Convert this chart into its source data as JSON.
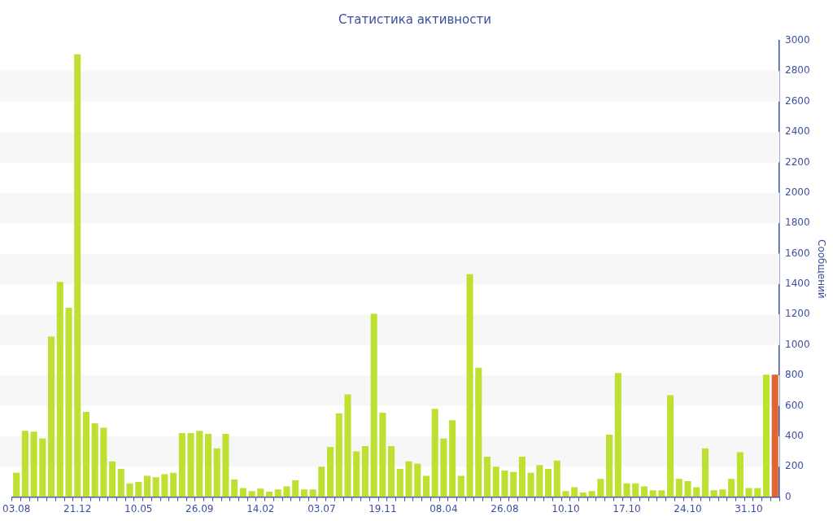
{
  "chart_data": {
    "type": "bar",
    "title": "Статистика активности",
    "y2label": "Сообщений",
    "categories": [
      "03.08",
      null,
      null,
      null,
      null,
      null,
      null,
      "21.12",
      null,
      null,
      null,
      null,
      null,
      null,
      "10.05",
      null,
      null,
      null,
      null,
      null,
      null,
      "26.09",
      null,
      null,
      null,
      null,
      null,
      null,
      "14.02",
      null,
      null,
      null,
      null,
      null,
      null,
      "03.07",
      null,
      null,
      null,
      null,
      null,
      null,
      "19.11",
      null,
      null,
      null,
      null,
      null,
      null,
      "08.04",
      null,
      null,
      null,
      null,
      null,
      null,
      "26.08",
      null,
      null,
      null,
      null,
      null,
      null,
      "10.10",
      null,
      null,
      null,
      null,
      null,
      null,
      "17.10",
      null,
      null,
      null,
      null,
      null,
      null,
      "24.10",
      null,
      null,
      null,
      null,
      null,
      null,
      "31.10",
      null,
      null,
      null
    ],
    "series": [
      {
        "axis": "y2",
        "values": [
          160,
          435,
          430,
          385,
          1055,
          1415,
          1245,
          2910,
          560,
          485,
          455,
          235,
          185,
          90,
          100,
          140,
          130,
          150,
          160,
          420,
          420,
          435,
          415,
          320,
          415,
          115,
          60,
          40,
          55,
          35,
          50,
          70,
          110,
          50,
          50,
          200,
          330,
          550,
          675,
          300,
          335,
          1205,
          555,
          335,
          185,
          235,
          220,
          140,
          580,
          385,
          505,
          140,
          1465,
          850,
          265,
          200,
          175,
          165,
          265,
          160,
          210,
          185,
          240,
          40,
          65,
          30,
          40,
          120,
          410,
          815,
          90,
          90,
          70,
          45,
          45,
          670,
          120,
          105,
          65,
          320,
          45,
          50,
          120,
          295,
          60,
          60,
          805,
          805
        ],
        "colors": [
          "#bde031",
          "#bde031",
          "#bde031",
          "#bde031",
          "#bde031",
          "#bde031",
          "#bde031",
          "#bde031",
          "#bde031",
          "#bde031",
          "#bde031",
          "#bde031",
          "#bde031",
          "#bde031",
          "#bde031",
          "#bde031",
          "#bde031",
          "#bde031",
          "#bde031",
          "#bde031",
          "#bde031",
          "#bde031",
          "#bde031",
          "#bde031",
          "#bde031",
          "#bde031",
          "#bde031",
          "#bde031",
          "#bde031",
          "#bde031",
          "#bde031",
          "#bde031",
          "#bde031",
          "#bde031",
          "#bde031",
          "#bde031",
          "#bde031",
          "#bde031",
          "#bde031",
          "#bde031",
          "#bde031",
          "#bde031",
          "#bde031",
          "#bde031",
          "#bde031",
          "#bde031",
          "#bde031",
          "#bde031",
          "#bde031",
          "#bde031",
          "#bde031",
          "#bde031",
          "#bde031",
          "#bde031",
          "#bde031",
          "#bde031",
          "#bde031",
          "#bde031",
          "#bde031",
          "#bde031",
          "#bde031",
          "#bde031",
          "#bde031",
          "#bde031",
          "#bde031",
          "#bde031",
          "#bde031",
          "#bde031",
          "#bde031",
          "#bde031",
          "#bde031",
          "#bde031",
          "#bde031",
          "#bde031",
          "#bde031",
          "#bde031",
          "#bde031",
          "#bde031",
          "#bde031",
          "#bde031",
          "#bde031",
          "#bde031",
          "#bde031",
          "#bde031",
          "#bde031",
          "#bde031",
          "#bde031",
          "#e06530"
        ]
      }
    ],
    "y2lim": [
      0,
      3000
    ],
    "y2ticks": [
      0,
      200,
      400,
      600,
      800,
      1000,
      1200,
      1400,
      1600,
      1800,
      2000,
      2200,
      2400,
      2600,
      2800,
      3000
    ],
    "bands": [
      {
        "axis": "y2",
        "from": 200,
        "to": 400,
        "color": "#f7f7f7"
      },
      {
        "axis": "y2",
        "from": 600,
        "to": 800,
        "color": "#f7f7f7"
      },
      {
        "axis": "y2",
        "from": 1000,
        "to": 1200,
        "color": "#f7f7f7"
      },
      {
        "axis": "y2",
        "from": 1400,
        "to": 1600,
        "color": "#f7f7f7"
      },
      {
        "axis": "y2",
        "from": 1800,
        "to": 2000,
        "color": "#f7f7f7"
      },
      {
        "axis": "y2",
        "from": 2200,
        "to": 2400,
        "color": "#f7f7f7"
      },
      {
        "axis": "y2",
        "from": 2600,
        "to": 2800,
        "color": "#f7f7f7"
      }
    ],
    "grid": false,
    "legend": false
  }
}
